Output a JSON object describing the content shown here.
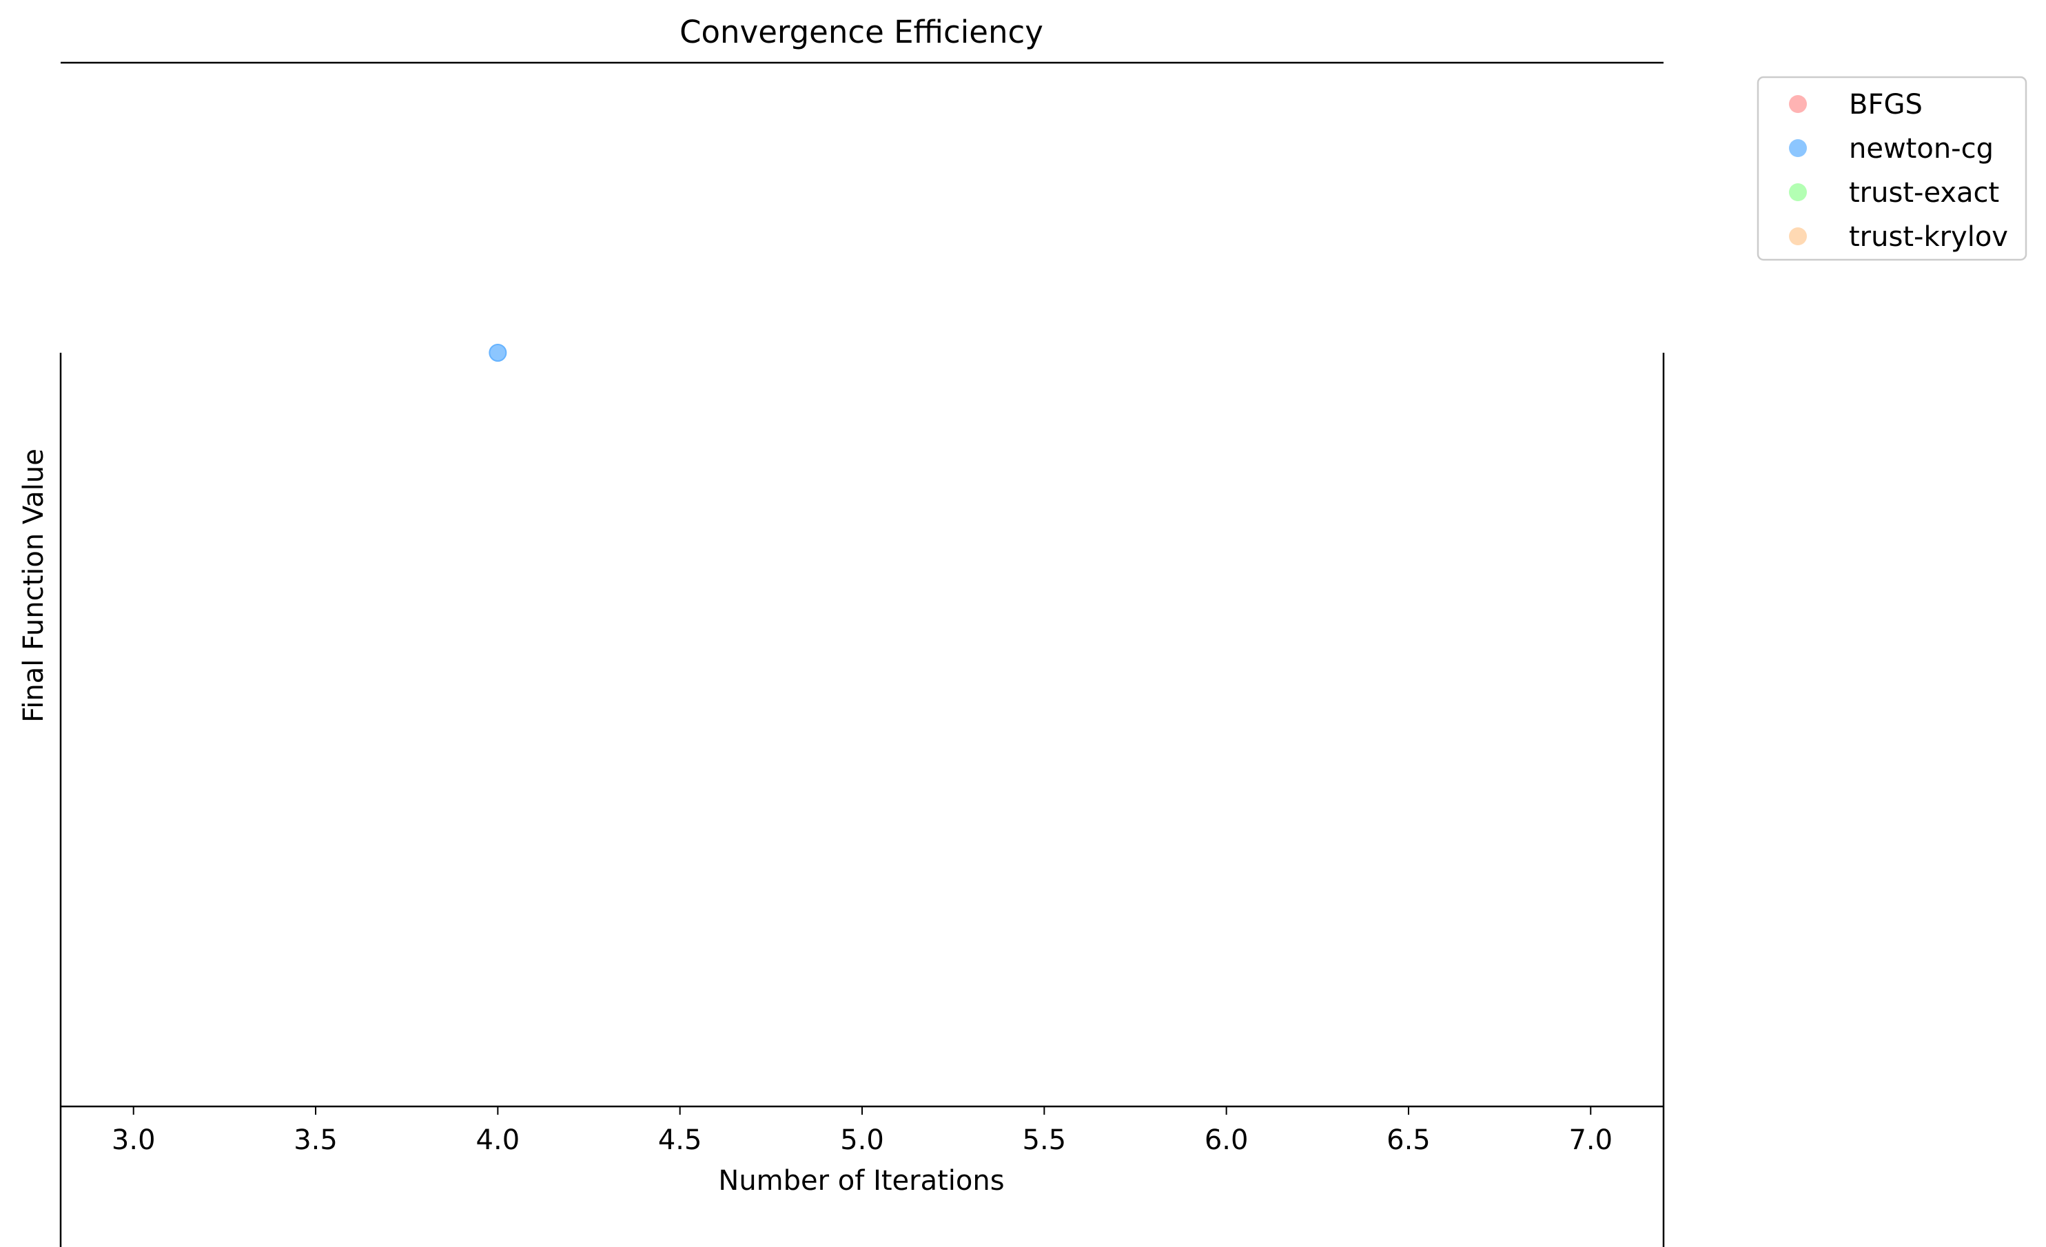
{
  "chart_data": {
    "type": "scatter",
    "title": "Convergence Efficiency",
    "xlabel": "Number of Iterations",
    "ylabel": "Final Function Value",
    "xlim": [
      2.8,
      7.2
    ],
    "xticks": [
      3.0,
      3.5,
      4.0,
      4.5,
      5.0,
      5.5,
      6.0,
      6.5,
      7.0
    ],
    "xtick_labels": [
      "3.0",
      "3.5",
      "4.0",
      "4.5",
      "5.0",
      "5.5",
      "6.0",
      "6.5",
      "7.0"
    ],
    "yticks": [],
    "grid": false,
    "legend_position": "outside-top-right",
    "series": [
      {
        "name": "BFGS",
        "color": "#ff9999",
        "points": []
      },
      {
        "name": "newton-cg",
        "color": "#66b3ff",
        "points": [
          {
            "x": 4.0,
            "y": null
          }
        ]
      },
      {
        "name": "trust-exact",
        "color": "#99ff99",
        "points": []
      },
      {
        "name": "trust-krylov",
        "color": "#ffcc99",
        "points": []
      }
    ]
  }
}
